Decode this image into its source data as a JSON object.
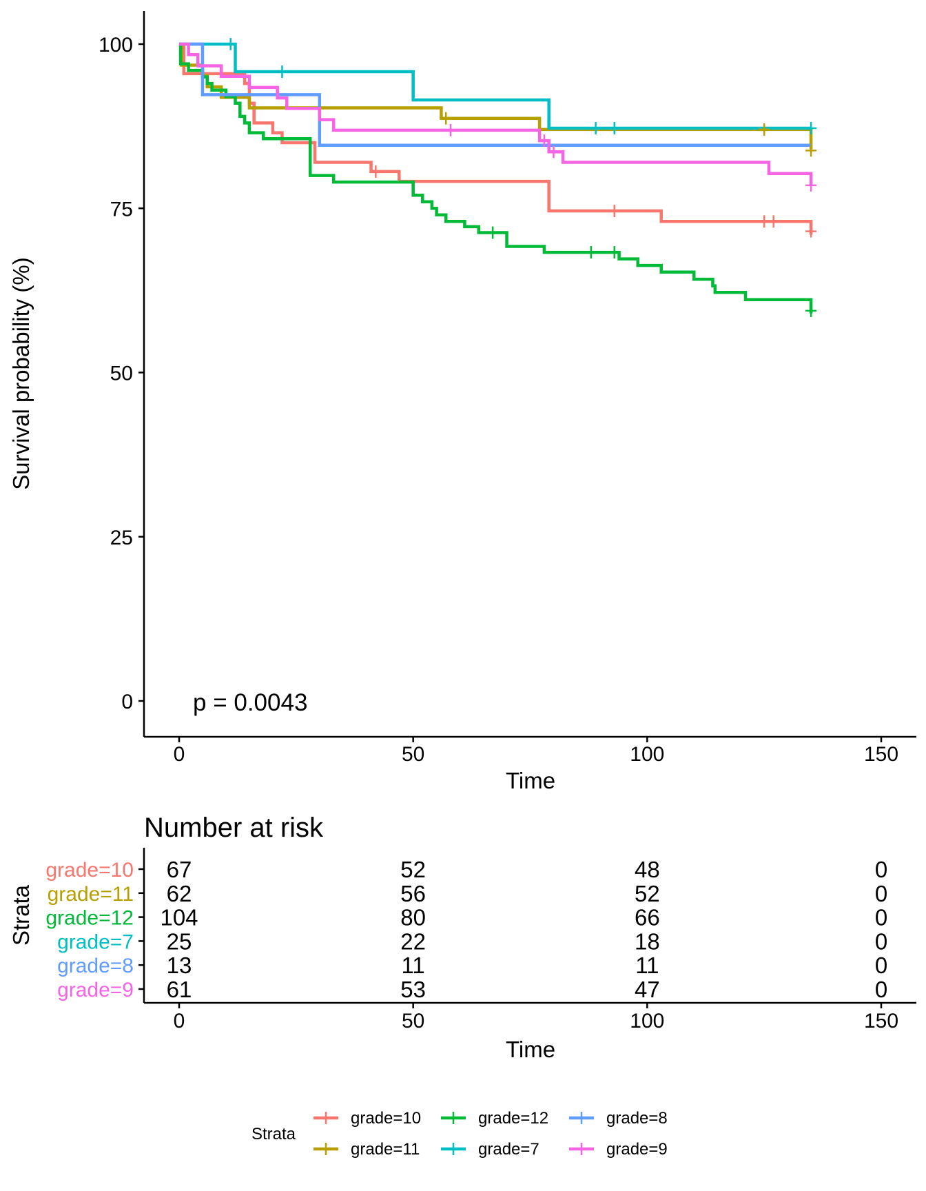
{
  "chart_data": [
    {
      "type": "line",
      "subtype": "kaplan-meier survival curve",
      "title": "",
      "xlabel": "Time",
      "ylabel": "Survival probability (%)",
      "xlim": [
        0,
        150
      ],
      "ylim": [
        0,
        100
      ],
      "x_ticks": [
        "0",
        "50",
        "100",
        "150"
      ],
      "y_ticks": [
        "0",
        "25",
        "50",
        "75",
        "100"
      ],
      "grid": false,
      "annotation": "p = 0.0043",
      "series": [
        {
          "name": "grade=10",
          "color": "#F8766D",
          "steps": [
            [
              0,
              100
            ],
            [
              1,
              95.5
            ],
            [
              10,
              95.5
            ],
            [
              14,
              94
            ],
            [
              15,
              91
            ],
            [
              16,
              88
            ],
            [
              20,
              86.5
            ],
            [
              22,
              85
            ],
            [
              29,
              82
            ],
            [
              41,
              80.6
            ],
            [
              47,
              79.1
            ],
            [
              78,
              79.1
            ],
            [
              79,
              74.6
            ],
            [
              103,
              73
            ],
            [
              135,
              73
            ],
            [
              135,
              71
            ]
          ],
          "censors": [
            [
              42,
              80.6
            ],
            [
              93,
              74.6
            ],
            [
              125,
              73
            ],
            [
              127,
              73
            ],
            [
              135,
              71.5
            ]
          ]
        },
        {
          "name": "grade=11",
          "color": "#B79F00",
          "steps": [
            [
              0,
              100
            ],
            [
              0.5,
              96.8
            ],
            [
              5,
              95.2
            ],
            [
              6,
              93.5
            ],
            [
              9,
              91.9
            ],
            [
              15,
              90.3
            ],
            [
              56,
              88.7
            ],
            [
              77,
              87
            ],
            [
              135,
              87
            ],
            [
              135,
              84
            ]
          ],
          "censors": [
            [
              57,
              88.7
            ],
            [
              125,
              87
            ],
            [
              135,
              83.8
            ]
          ]
        },
        {
          "name": "grade=12",
          "color": "#00BA38",
          "steps": [
            [
              0,
              100
            ],
            [
              0.3,
              97
            ],
            [
              2,
              96
            ],
            [
              5,
              95
            ],
            [
              6,
              94
            ],
            [
              7,
              93
            ],
            [
              10,
              92
            ],
            [
              12,
              91
            ],
            [
              13,
              89
            ],
            [
              14,
              88
            ],
            [
              15,
              86.5
            ],
            [
              18,
              85.6
            ],
            [
              28,
              80
            ],
            [
              33,
              79
            ],
            [
              50,
              77
            ],
            [
              52,
              76
            ],
            [
              54,
              75
            ],
            [
              55,
              74
            ],
            [
              57,
              73
            ],
            [
              61,
              72.2
            ],
            [
              64,
              71.3
            ],
            [
              70,
              69.2
            ],
            [
              78,
              68.3
            ],
            [
              92,
              68.3
            ],
            [
              94,
              67.3
            ],
            [
              98,
              66.3
            ],
            [
              103,
              65.3
            ],
            [
              110,
              64.2
            ],
            [
              114,
              63.2
            ],
            [
              114.5,
              62.2
            ],
            [
              121,
              61.1
            ],
            [
              135,
              61.1
            ],
            [
              135,
              59
            ]
          ],
          "censors": [
            [
              67,
              71.3
            ],
            [
              88,
              68.3
            ],
            [
              93,
              68.3
            ],
            [
              135,
              59.4
            ]
          ]
        },
        {
          "name": "grade=7",
          "color": "#00BFC4",
          "steps": [
            [
              0,
              100
            ],
            [
              12,
              95.8
            ],
            [
              50,
              91.5
            ],
            [
              79,
              87.2
            ],
            [
              135,
              87.2
            ]
          ],
          "censors": [
            [
              11,
              100
            ],
            [
              22,
              95.8
            ],
            [
              89,
              87.2
            ],
            [
              93,
              87.2
            ],
            [
              135,
              87.2
            ]
          ]
        },
        {
          "name": "grade=8",
          "color": "#619CFF",
          "steps": [
            [
              0,
              100
            ],
            [
              5,
              92.3
            ],
            [
              30,
              84.6
            ],
            [
              135,
              84.6
            ]
          ],
          "censors": []
        },
        {
          "name": "grade=9",
          "color": "#F564E3",
          "steps": [
            [
              0,
              100
            ],
            [
              2,
              98.4
            ],
            [
              4,
              96.7
            ],
            [
              9,
              95.1
            ],
            [
              15,
              93.4
            ],
            [
              21,
              91.8
            ],
            [
              23,
              90.2
            ],
            [
              30,
              88.5
            ],
            [
              33,
              86.9
            ],
            [
              77,
              85.3
            ],
            [
              79,
              83.6
            ],
            [
              82,
              82
            ],
            [
              126,
              80.3
            ],
            [
              135,
              80.3
            ],
            [
              135,
              78.5
            ]
          ],
          "censors": [
            [
              58,
              86.9
            ],
            [
              78,
              85.3
            ],
            [
              80,
              83.6
            ],
            [
              135,
              78.5
            ]
          ]
        }
      ]
    },
    {
      "type": "table",
      "title": "Number at risk",
      "xlabel": "Time",
      "ylabel": "Strata",
      "xlim": [
        0,
        150
      ],
      "x_ticks": [
        "0",
        "50",
        "100",
        "150"
      ],
      "times": [
        0,
        50,
        100,
        150
      ],
      "rows": [
        {
          "label": "grade=10",
          "color": "#F8766D",
          "values": [
            "67",
            "52",
            "48",
            "0"
          ]
        },
        {
          "label": "grade=11",
          "color": "#B79F00",
          "values": [
            "62",
            "56",
            "52",
            "0"
          ]
        },
        {
          "label": "grade=12",
          "color": "#00BA38",
          "values": [
            "104",
            "80",
            "66",
            "0"
          ]
        },
        {
          "label": "grade=7",
          "color": "#00BFC4",
          "values": [
            "25",
            "22",
            "18",
            "0"
          ]
        },
        {
          "label": "grade=8",
          "color": "#619CFF",
          "values": [
            "13",
            "11",
            "11",
            "0"
          ]
        },
        {
          "label": "grade=9",
          "color": "#F564E3",
          "values": [
            "61",
            "53",
            "47",
            "0"
          ]
        }
      ]
    }
  ],
  "legend": {
    "title": "Strata",
    "placement": "bottom",
    "items": [
      {
        "label": "grade=10",
        "color": "#F8766D"
      },
      {
        "label": "grade=11",
        "color": "#B79F00"
      },
      {
        "label": "grade=12",
        "color": "#00BA38"
      },
      {
        "label": "grade=7",
        "color": "#00BFC4"
      },
      {
        "label": "grade=8",
        "color": "#619CFF"
      },
      {
        "label": "grade=9",
        "color": "#F564E3"
      }
    ]
  }
}
